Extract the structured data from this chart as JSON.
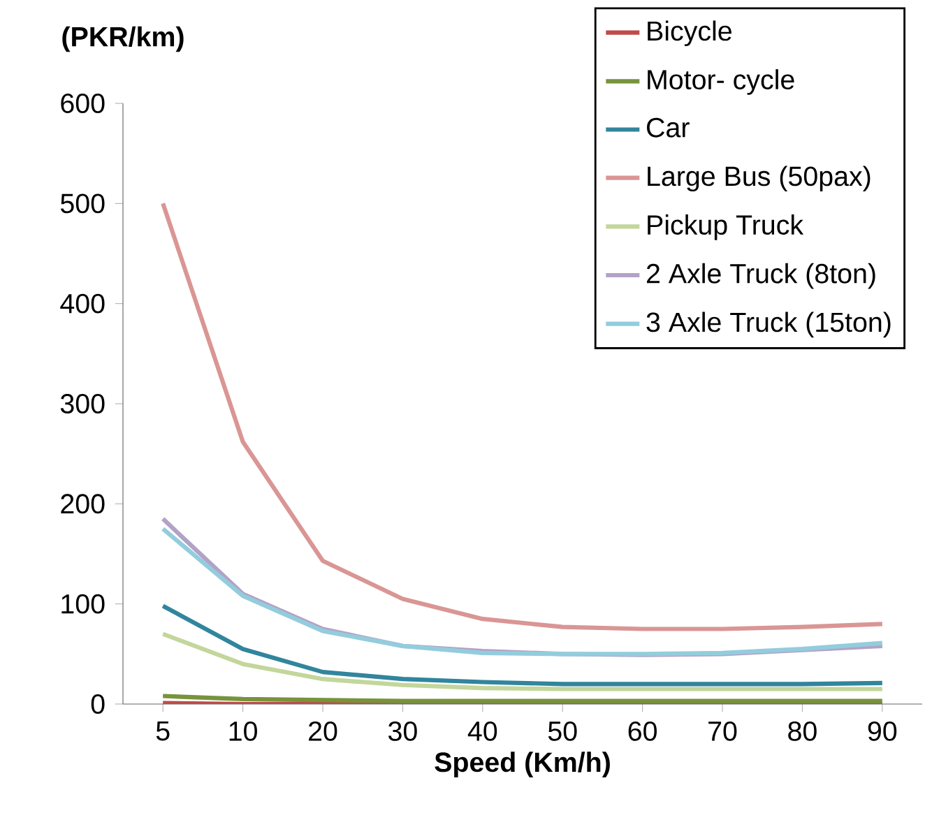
{
  "chart_data": {
    "type": "line",
    "ylabel": "(PKR/km)",
    "xlabel": "Speed (Km/h)",
    "categories": [
      "5",
      "10",
      "20",
      "30",
      "40",
      "50",
      "60",
      "70",
      "80",
      "90"
    ],
    "ylim": [
      0,
      600
    ],
    "yticks": [
      0,
      100,
      200,
      300,
      400,
      500,
      600
    ],
    "grid": false,
    "legend": "top right",
    "marker": "none",
    "line_style": "solid",
    "series": [
      {
        "name": "Bicycle",
        "color": "#be4b48",
        "values": [
          1,
          0,
          0,
          0,
          0,
          0,
          0,
          0,
          0,
          0
        ]
      },
      {
        "name": "Motor- cycle",
        "color": "#77933c",
        "values": [
          8,
          5,
          4,
          3,
          3,
          3,
          3,
          3,
          3,
          3
        ]
      },
      {
        "name": "Car",
        "color": "#31859c",
        "values": [
          98,
          55,
          32,
          25,
          22,
          20,
          20,
          20,
          20,
          21
        ]
      },
      {
        "name": "Large Bus (50pax)",
        "color": "#d99694",
        "values": [
          500,
          262,
          143,
          105,
          85,
          77,
          75,
          75,
          77,
          80
        ]
      },
      {
        "name": "Pickup Truck",
        "color": "#c3d69b",
        "values": [
          70,
          40,
          25,
          19,
          16,
          15,
          15,
          15,
          15,
          15
        ]
      },
      {
        "name": "2 Axle Truck (8ton)",
        "color": "#b3a2c7",
        "values": [
          185,
          110,
          75,
          58,
          53,
          50,
          49,
          50,
          54,
          58
        ]
      },
      {
        "name": "3 Axle Truck (15ton)",
        "color": "#93cddd",
        "values": [
          175,
          108,
          73,
          58,
          51,
          50,
          50,
          51,
          55,
          61
        ]
      }
    ]
  }
}
